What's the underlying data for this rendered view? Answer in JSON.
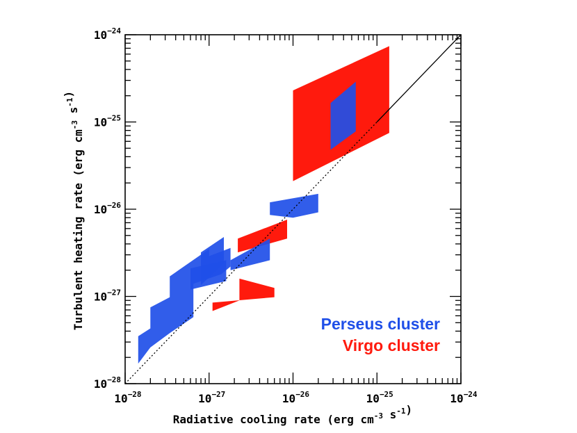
{
  "chart_data": {
    "type": "scatter",
    "title": "",
    "xlabel": "Radiative cooling rate (erg cm-3 s-1)",
    "ylabel": "Turbulent heating rate (erg cm-3 s-1)",
    "x_scale": "log",
    "y_scale": "log",
    "xlim": [
      1e-28,
      1e-24
    ],
    "ylim": [
      1e-28,
      1e-24
    ],
    "x_ticks": [
      {
        "base": "10",
        "exp": "−28"
      },
      {
        "base": "10",
        "exp": "−27"
      },
      {
        "base": "10",
        "exp": "−26"
      },
      {
        "base": "10",
        "exp": "−25"
      },
      {
        "base": "10",
        "exp": "−24"
      }
    ],
    "y_ticks": [
      {
        "base": "10",
        "exp": "−28"
      },
      {
        "base": "10",
        "exp": "−27"
      },
      {
        "base": "10",
        "exp": "−26"
      },
      {
        "base": "10",
        "exp": "−25"
      },
      {
        "base": "10",
        "exp": "−24"
      }
    ],
    "reference_line": "y = x (1:1 line)",
    "legend": [
      {
        "name": "Perseus cluster",
        "color": "#1f4fe8"
      },
      {
        "name": "Virgo cluster",
        "color": "#ff1a0d"
      }
    ],
    "series": [
      {
        "name": "Virgo cluster",
        "color": "#ff1a0d",
        "regions": [
          [
            [
              1e-26,
              2.1e-26
            ],
            [
              1e-26,
              2.3e-25
            ],
            [
              1.4e-25,
              7.4e-25
            ],
            [
              1.4e-25,
              7.5e-26
            ]
          ],
          [
            [
              6e-27,
              9.8e-28
            ],
            [
              6e-27,
              1.25e-27
            ],
            [
              2.3e-27,
              1.6e-27
            ],
            [
              2.3e-27,
              9e-28
            ],
            [
              1.1e-27,
              6.8e-28
            ],
            [
              1.1e-27,
              8.5e-28
            ]
          ],
          [
            [
              2.2e-27,
              3.2e-27
            ],
            [
              2.2e-27,
              4.6e-27
            ],
            [
              8.5e-27,
              7.6e-27
            ],
            [
              8.5e-27,
              4.6e-27
            ]
          ]
        ]
      },
      {
        "name": "Perseus cluster",
        "color": "#1f4fe8",
        "regions": [
          [
            [
              2.8e-26,
              4.8e-26
            ],
            [
              2.8e-26,
              1.65e-25
            ],
            [
              5.6e-26,
              2.9e-25
            ],
            [
              5.6e-26,
              7.8e-26
            ]
          ],
          [
            [
              1.43e-28,
              1.7e-28
            ],
            [
              1.43e-28,
              3.5e-28
            ],
            [
              2e-28,
              4.3e-28
            ],
            [
              2e-28,
              7.5e-28
            ],
            [
              3.4e-28,
              9.8e-28
            ],
            [
              3.4e-28,
              1.7e-27
            ],
            [
              1e-27,
              3.5e-27
            ],
            [
              1e-27,
              2.9e-27
            ],
            [
              1.8e-27,
              3.6e-27
            ],
            [
              1.8e-27,
              2.2e-27
            ],
            [
              1.4e-27,
              1.8e-27
            ],
            [
              6.5e-28,
              1.4e-27
            ],
            [
              6.5e-28,
              5.8e-28
            ],
            [
              3.4e-28,
              3.8e-28
            ],
            [
              2e-28,
              2.6e-28
            ]
          ],
          [
            [
              6e-28,
              1.2e-27
            ],
            [
              6e-28,
              2.1e-27
            ],
            [
              1.6e-27,
              2.6e-27
            ],
            [
              1.6e-27,
              1.5e-27
            ]
          ],
          [
            [
              8e-28,
              1.35e-27
            ],
            [
              8e-28,
              3.2e-27
            ],
            [
              1.5e-27,
              4.8e-27
            ],
            [
              1.5e-27,
              2.4e-27
            ]
          ],
          [
            [
              1.8e-27,
              2e-27
            ],
            [
              1.8e-27,
              2.6e-27
            ],
            [
              5.3e-27,
              4.6e-27
            ],
            [
              5.3e-27,
              2.6e-27
            ]
          ],
          [
            [
              5.3e-27,
              8.6e-27
            ],
            [
              5.3e-27,
              1.2e-26
            ],
            [
              2e-26,
              1.5e-26
            ],
            [
              2e-26,
              9.2e-27
            ],
            [
              1e-26,
              8e-27
            ]
          ]
        ]
      }
    ]
  }
}
